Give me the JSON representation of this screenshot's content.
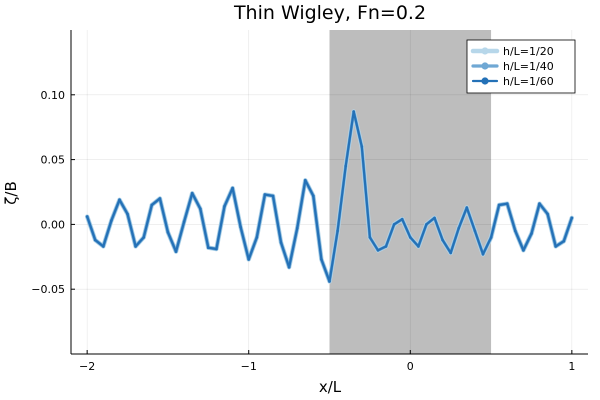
{
  "chart_data": {
    "type": "line",
    "title": "Thin Wigley, Fn=0.2",
    "xlabel": "x/L",
    "ylabel": "ζ/B",
    "xlim": [
      -2.1,
      1.1
    ],
    "ylim": [
      -0.1,
      0.15
    ],
    "xticks": [
      -2,
      -1,
      0,
      1
    ],
    "xtick_labels": [
      "−2",
      "−1",
      "0",
      "1"
    ],
    "yticks": [
      -0.05,
      0.0,
      0.05,
      0.1
    ],
    "ytick_labels": [
      "−0.05",
      "0.00",
      "0.05",
      "0.10"
    ],
    "grid": true,
    "legend_position": "top-right",
    "shaded_region": {
      "x_start": -0.5,
      "x_end": 0.5,
      "color": "#bdbdbd"
    },
    "series": [
      {
        "name": "h/L=1/20",
        "color": "#b7d7ea",
        "points": [
          [
            -2.0,
            0.006
          ],
          [
            -1.95,
            -0.012
          ],
          [
            -1.9,
            -0.017
          ],
          [
            -1.85,
            0.003
          ],
          [
            -1.8,
            0.019
          ],
          [
            -1.75,
            0.008
          ],
          [
            -1.7,
            -0.017
          ],
          [
            -1.65,
            -0.01
          ],
          [
            -1.6,
            0.015
          ],
          [
            -1.55,
            0.02
          ],
          [
            -1.5,
            -0.006
          ],
          [
            -1.45,
            -0.021
          ],
          [
            -1.4,
            0.002
          ],
          [
            -1.35,
            0.024
          ],
          [
            -1.3,
            0.012
          ],
          [
            -1.25,
            -0.018
          ],
          [
            -1.2,
            -0.019
          ],
          [
            -1.15,
            0.014
          ],
          [
            -1.1,
            0.028
          ],
          [
            -1.05,
            -0.002
          ],
          [
            -1.0,
            -0.027
          ],
          [
            -0.95,
            -0.01
          ],
          [
            -0.9,
            0.023
          ],
          [
            -0.85,
            0.022
          ],
          [
            -0.8,
            -0.014
          ],
          [
            -0.75,
            -0.033
          ],
          [
            -0.7,
            -0.003
          ],
          [
            -0.65,
            0.034
          ],
          [
            -0.6,
            0.022
          ],
          [
            -0.55,
            -0.027
          ],
          [
            -0.5,
            -0.044
          ],
          [
            -0.45,
            -0.005
          ],
          [
            -0.4,
            0.045
          ],
          [
            -0.35,
            0.087
          ],
          [
            -0.3,
            0.06
          ],
          [
            -0.25,
            -0.01
          ],
          [
            -0.2,
            -0.02
          ],
          [
            -0.15,
            -0.017
          ],
          [
            -0.1,
            0.0
          ],
          [
            -0.05,
            0.004
          ],
          [
            0.0,
            -0.01
          ],
          [
            0.05,
            -0.017
          ],
          [
            0.1,
            0.0
          ],
          [
            0.15,
            0.005
          ],
          [
            0.2,
            -0.012
          ],
          [
            0.25,
            -0.022
          ],
          [
            0.3,
            -0.003
          ],
          [
            0.35,
            0.013
          ],
          [
            0.4,
            -0.005
          ],
          [
            0.45,
            -0.023
          ],
          [
            0.5,
            -0.01
          ],
          [
            0.55,
            0.015
          ],
          [
            0.6,
            0.016
          ],
          [
            0.65,
            -0.005
          ],
          [
            0.7,
            -0.02
          ],
          [
            0.75,
            -0.007
          ],
          [
            0.8,
            0.016
          ],
          [
            0.85,
            0.008
          ],
          [
            0.9,
            -0.017
          ],
          [
            0.95,
            -0.013
          ],
          [
            1.0,
            0.005
          ]
        ]
      },
      {
        "name": "h/L=1/40",
        "color": "#6fa8d4",
        "points": [
          [
            -2.0,
            0.006
          ],
          [
            -1.95,
            -0.012
          ],
          [
            -1.9,
            -0.017
          ],
          [
            -1.85,
            0.003
          ],
          [
            -1.8,
            0.019
          ],
          [
            -1.75,
            0.008
          ],
          [
            -1.7,
            -0.017
          ],
          [
            -1.65,
            -0.01
          ],
          [
            -1.6,
            0.015
          ],
          [
            -1.55,
            0.02
          ],
          [
            -1.5,
            -0.006
          ],
          [
            -1.45,
            -0.021
          ],
          [
            -1.4,
            0.002
          ],
          [
            -1.35,
            0.024
          ],
          [
            -1.3,
            0.012
          ],
          [
            -1.25,
            -0.018
          ],
          [
            -1.2,
            -0.019
          ],
          [
            -1.15,
            0.014
          ],
          [
            -1.1,
            0.028
          ],
          [
            -1.05,
            -0.002
          ],
          [
            -1.0,
            -0.027
          ],
          [
            -0.95,
            -0.01
          ],
          [
            -0.9,
            0.023
          ],
          [
            -0.85,
            0.022
          ],
          [
            -0.8,
            -0.014
          ],
          [
            -0.75,
            -0.033
          ],
          [
            -0.7,
            -0.003
          ],
          [
            -0.65,
            0.034
          ],
          [
            -0.6,
            0.022
          ],
          [
            -0.55,
            -0.027
          ],
          [
            -0.5,
            -0.044
          ],
          [
            -0.45,
            -0.005
          ],
          [
            -0.4,
            0.045
          ],
          [
            -0.35,
            0.087
          ],
          [
            -0.3,
            0.06
          ],
          [
            -0.25,
            -0.01
          ],
          [
            -0.2,
            -0.02
          ],
          [
            -0.15,
            -0.017
          ],
          [
            -0.1,
            0.0
          ],
          [
            -0.05,
            0.004
          ],
          [
            0.0,
            -0.01
          ],
          [
            0.05,
            -0.017
          ],
          [
            0.1,
            0.0
          ],
          [
            0.15,
            0.005
          ],
          [
            0.2,
            -0.012
          ],
          [
            0.25,
            -0.022
          ],
          [
            0.3,
            -0.003
          ],
          [
            0.35,
            0.013
          ],
          [
            0.4,
            -0.005
          ],
          [
            0.45,
            -0.023
          ],
          [
            0.5,
            -0.01
          ],
          [
            0.55,
            0.015
          ],
          [
            0.6,
            0.016
          ],
          [
            0.65,
            -0.005
          ],
          [
            0.7,
            -0.02
          ],
          [
            0.75,
            -0.007
          ],
          [
            0.8,
            0.016
          ],
          [
            0.85,
            0.008
          ],
          [
            0.9,
            -0.017
          ],
          [
            0.95,
            -0.013
          ],
          [
            1.0,
            0.005
          ]
        ]
      },
      {
        "name": "h/L=1/60",
        "color": "#2471b7",
        "points": [
          [
            -2.0,
            0.006
          ],
          [
            -1.95,
            -0.012
          ],
          [
            -1.9,
            -0.017
          ],
          [
            -1.85,
            0.003
          ],
          [
            -1.8,
            0.019
          ],
          [
            -1.75,
            0.008
          ],
          [
            -1.7,
            -0.017
          ],
          [
            -1.65,
            -0.01
          ],
          [
            -1.6,
            0.015
          ],
          [
            -1.55,
            0.02
          ],
          [
            -1.5,
            -0.006
          ],
          [
            -1.45,
            -0.021
          ],
          [
            -1.4,
            0.002
          ],
          [
            -1.35,
            0.024
          ],
          [
            -1.3,
            0.012
          ],
          [
            -1.25,
            -0.018
          ],
          [
            -1.2,
            -0.019
          ],
          [
            -1.15,
            0.014
          ],
          [
            -1.1,
            0.028
          ],
          [
            -1.05,
            -0.002
          ],
          [
            -1.0,
            -0.027
          ],
          [
            -0.95,
            -0.01
          ],
          [
            -0.9,
            0.023
          ],
          [
            -0.85,
            0.022
          ],
          [
            -0.8,
            -0.014
          ],
          [
            -0.75,
            -0.033
          ],
          [
            -0.7,
            -0.003
          ],
          [
            -0.65,
            0.034
          ],
          [
            -0.6,
            0.022
          ],
          [
            -0.55,
            -0.027
          ],
          [
            -0.5,
            -0.044
          ],
          [
            -0.45,
            -0.005
          ],
          [
            -0.4,
            0.045
          ],
          [
            -0.35,
            0.087
          ],
          [
            -0.3,
            0.06
          ],
          [
            -0.25,
            -0.01
          ],
          [
            -0.2,
            -0.02
          ],
          [
            -0.15,
            -0.017
          ],
          [
            -0.1,
            0.0
          ],
          [
            -0.05,
            0.004
          ],
          [
            0.0,
            -0.01
          ],
          [
            0.05,
            -0.017
          ],
          [
            0.1,
            0.0
          ],
          [
            0.15,
            0.005
          ],
          [
            0.2,
            -0.012
          ],
          [
            0.25,
            -0.022
          ],
          [
            0.3,
            -0.003
          ],
          [
            0.35,
            0.013
          ],
          [
            0.4,
            -0.005
          ],
          [
            0.45,
            -0.023
          ],
          [
            0.5,
            -0.01
          ],
          [
            0.55,
            0.015
          ],
          [
            0.6,
            0.016
          ],
          [
            0.65,
            -0.005
          ],
          [
            0.7,
            -0.02
          ],
          [
            0.75,
            -0.007
          ],
          [
            0.8,
            0.016
          ],
          [
            0.85,
            0.008
          ],
          [
            0.9,
            -0.017
          ],
          [
            0.95,
            -0.013
          ],
          [
            1.0,
            0.005
          ]
        ]
      }
    ]
  }
}
